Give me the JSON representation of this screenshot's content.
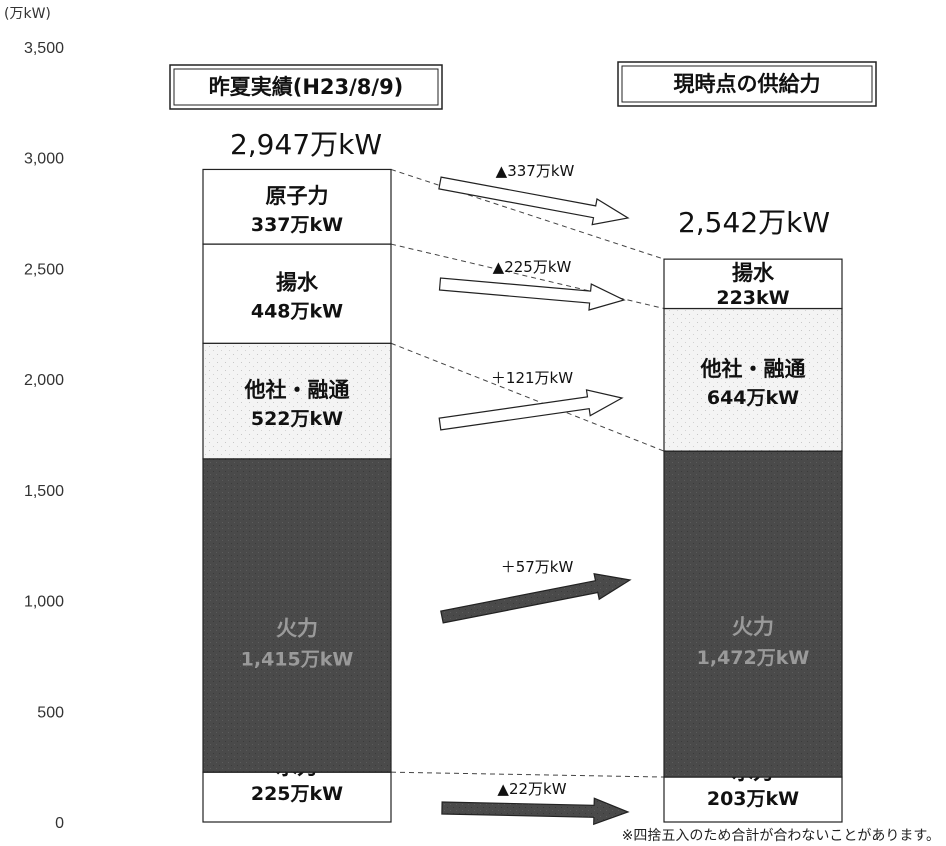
{
  "chart_data": {
    "type": "bar",
    "unit_label": "(万kW)",
    "ylim": [
      0,
      3500
    ],
    "yticks": [
      "3,500",
      "3,000",
      "2,500",
      "2,000",
      "1,500",
      "1,000",
      "500",
      "0"
    ],
    "ytick_values": [
      3500,
      3000,
      2500,
      2000,
      1500,
      1000,
      500,
      0
    ],
    "categories": [
      "昨夏実績(H23/8/9)",
      "現時点の供給力"
    ],
    "totals": [
      {
        "text": "2,947万kW",
        "value": 2947
      },
      {
        "text": "2,542万kW",
        "value": 2542
      }
    ],
    "stacks": [
      [
        {
          "name": "水力",
          "value_text": "225万kW",
          "value": 225,
          "style": "light"
        },
        {
          "name": "火力",
          "value_text": "1,415万kW",
          "value": 1415,
          "style": "dark"
        },
        {
          "name": "他社・融通",
          "value_text": "522万kW",
          "value": 522,
          "style": "light"
        },
        {
          "name": "揚水",
          "value_text": "448万kW",
          "value": 448,
          "style": "light"
        },
        {
          "name": "原子力",
          "value_text": "337万kW",
          "value": 337,
          "style": "light"
        }
      ],
      [
        {
          "name": "水力",
          "value_text": "203万kW",
          "value": 203,
          "style": "light"
        },
        {
          "name": "火力",
          "value_text": "1,472万kW",
          "value": 1472,
          "style": "dark"
        },
        {
          "name": "他社・融通",
          "value_text": "644万kW",
          "value": 644,
          "style": "light"
        },
        {
          "name": "揚水",
          "value_text": "223kW",
          "value": 223,
          "style": "light"
        }
      ]
    ],
    "changes": [
      {
        "label": "▲337万kW",
        "from": "原子力",
        "style": "outline",
        "value": -337
      },
      {
        "label": "▲225万kW",
        "from": "揚水",
        "style": "outline",
        "value": -225
      },
      {
        "label": "＋121万kW",
        "from": "他社・融通",
        "style": "outline",
        "value": 121
      },
      {
        "label": "＋57万kW",
        "from": "火力",
        "style": "dark",
        "value": 57
      },
      {
        "label": "▲22万kW",
        "from": "水力",
        "style": "dark",
        "value": -22
      }
    ],
    "grid": false,
    "note": "※四捨五入のため合計が合わないことがあります。"
  },
  "colors": {
    "dark_fill": "#4a4a4a",
    "light_fill": "#ffffff",
    "outline": "#222222"
  }
}
